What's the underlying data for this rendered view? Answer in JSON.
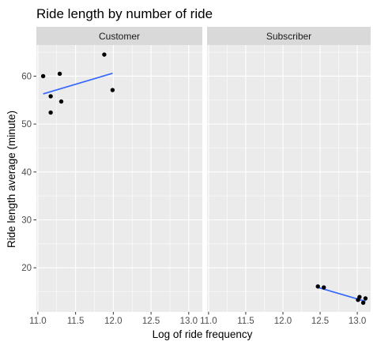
{
  "chart_data": {
    "type": "scatter",
    "title": "Ride length by number of ride",
    "xlabel": "Log of ride frequency",
    "ylabel": "Ride length average  (minute)",
    "xlim": [
      10.98,
      13.18
    ],
    "ylim": [
      10.8,
      66.5
    ],
    "x_ticks": [
      11.0,
      11.5,
      12.0,
      12.5,
      13.0
    ],
    "x_tick_labels": [
      "11.0",
      "11.5",
      "12.0",
      "12.5",
      "13.0"
    ],
    "y_ticks": [
      20,
      30,
      40,
      50,
      60
    ],
    "y_tick_labels": [
      "20",
      "30",
      "40",
      "50",
      "60"
    ],
    "grid": true,
    "panels": [
      {
        "name": "Customer",
        "points": [
          {
            "x": 11.07,
            "y": 60.0
          },
          {
            "x": 11.17,
            "y": 55.8
          },
          {
            "x": 11.17,
            "y": 52.4
          },
          {
            "x": 11.29,
            "y": 60.5
          },
          {
            "x": 11.31,
            "y": 54.7
          },
          {
            "x": 11.88,
            "y": 64.5
          },
          {
            "x": 11.99,
            "y": 57.1
          }
        ],
        "trend": {
          "x": [
            11.07,
            11.99
          ],
          "y": [
            56.3,
            60.6
          ]
        }
      },
      {
        "name": "Subscriber",
        "points": [
          {
            "x": 12.47,
            "y": 16.1
          },
          {
            "x": 12.55,
            "y": 15.9
          },
          {
            "x": 13.01,
            "y": 13.3
          },
          {
            "x": 13.03,
            "y": 13.9
          },
          {
            "x": 13.08,
            "y": 12.7
          },
          {
            "x": 13.11,
            "y": 13.6
          }
        ],
        "trend": {
          "x": [
            12.47,
            13.11
          ],
          "y": [
            15.9,
            13.0
          ]
        }
      }
    ],
    "colors": {
      "point": "#000000",
      "trend": "#3366FF",
      "panel_bg": "#EBEBEB",
      "strip_bg": "#D9D9D9",
      "grid": "#FFFFFF"
    }
  }
}
